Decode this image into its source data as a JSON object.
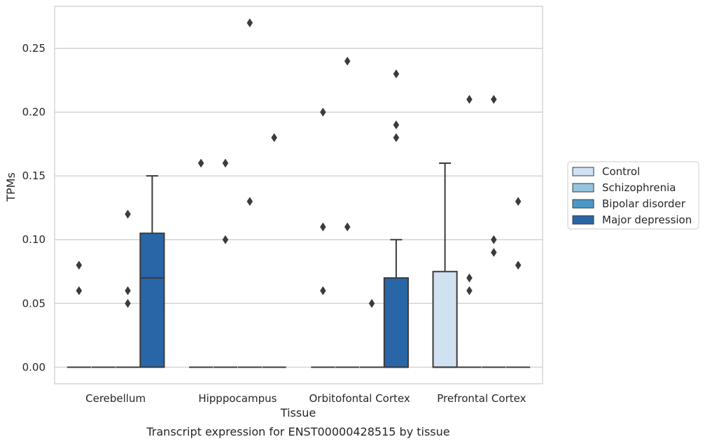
{
  "caption": "Transcript expression for ENST00000428515 by tissue",
  "chart_data": {
    "type": "box",
    "xlabel": "Tissue",
    "ylabel": "TPMs",
    "ylim": [
      -0.013,
      0.283
    ],
    "yticks": [
      "0.00",
      "0.05",
      "0.10",
      "0.15",
      "0.20",
      "0.25"
    ],
    "grid": "horizontal",
    "legend_position": "right",
    "categories": [
      "Cerebellum",
      "Hipppocampus",
      "Orbitofontal Cortex",
      "Prefrontal Cortex"
    ],
    "series": [
      {
        "name": "Control",
        "color": "#d0e1f2"
      },
      {
        "name": "Schizophrenia",
        "color": "#94c4df"
      },
      {
        "name": "Bipolar disorder",
        "color": "#4a98c9"
      },
      {
        "name": "Major depression",
        "color": "#2966a8"
      }
    ],
    "boxes": [
      {
        "category": "Cerebellum",
        "series": "Control",
        "q1": 0,
        "median": 0,
        "q3": 0,
        "whisker_low": 0,
        "whisker_high": 0,
        "outliers": [
          0.08,
          0.06
        ]
      },
      {
        "category": "Cerebellum",
        "series": "Schizophrenia",
        "q1": 0,
        "median": 0,
        "q3": 0,
        "whisker_low": 0,
        "whisker_high": 0,
        "outliers": []
      },
      {
        "category": "Cerebellum",
        "series": "Bipolar disorder",
        "q1": 0,
        "median": 0,
        "q3": 0,
        "whisker_low": 0,
        "whisker_high": 0,
        "outliers": [
          0.12,
          0.06,
          0.05
        ]
      },
      {
        "category": "Cerebellum",
        "series": "Major depression",
        "q1": 0,
        "median": 0.07,
        "q3": 0.105,
        "whisker_low": 0,
        "whisker_high": 0.15,
        "outliers": []
      },
      {
        "category": "Hipppocampus",
        "series": "Control",
        "q1": 0,
        "median": 0,
        "q3": 0,
        "whisker_low": 0,
        "whisker_high": 0,
        "outliers": [
          0.16
        ]
      },
      {
        "category": "Hipppocampus",
        "series": "Schizophrenia",
        "q1": 0,
        "median": 0,
        "q3": 0,
        "whisker_low": 0,
        "whisker_high": 0,
        "outliers": [
          0.16,
          0.1
        ]
      },
      {
        "category": "Hipppocampus",
        "series": "Bipolar disorder",
        "q1": 0,
        "median": 0,
        "q3": 0,
        "whisker_low": 0,
        "whisker_high": 0,
        "outliers": [
          0.27,
          0.13
        ]
      },
      {
        "category": "Hipppocampus",
        "series": "Major depression",
        "q1": 0,
        "median": 0,
        "q3": 0,
        "whisker_low": 0,
        "whisker_high": 0,
        "outliers": [
          0.18
        ]
      },
      {
        "category": "Orbitofontal Cortex",
        "series": "Control",
        "q1": 0,
        "median": 0,
        "q3": 0,
        "whisker_low": 0,
        "whisker_high": 0,
        "outliers": [
          0.2,
          0.11,
          0.06
        ]
      },
      {
        "category": "Orbitofontal Cortex",
        "series": "Schizophrenia",
        "q1": 0,
        "median": 0,
        "q3": 0,
        "whisker_low": 0,
        "whisker_high": 0,
        "outliers": [
          0.24,
          0.11
        ]
      },
      {
        "category": "Orbitofontal Cortex",
        "series": "Bipolar disorder",
        "q1": 0,
        "median": 0,
        "q3": 0,
        "whisker_low": 0,
        "whisker_high": 0,
        "outliers": [
          0.05
        ]
      },
      {
        "category": "Orbitofontal Cortex",
        "series": "Major depression",
        "q1": 0,
        "median": 0,
        "q3": 0.07,
        "whisker_low": 0,
        "whisker_high": 0.1,
        "outliers": [
          0.23,
          0.19,
          0.18
        ]
      },
      {
        "category": "Prefrontal Cortex",
        "series": "Control",
        "q1": 0,
        "median": 0,
        "q3": 0.075,
        "whisker_low": 0,
        "whisker_high": 0.16,
        "outliers": []
      },
      {
        "category": "Prefrontal Cortex",
        "series": "Schizophrenia",
        "q1": 0,
        "median": 0,
        "q3": 0,
        "whisker_low": 0,
        "whisker_high": 0,
        "outliers": [
          0.21,
          0.07,
          0.06
        ]
      },
      {
        "category": "Prefrontal Cortex",
        "series": "Bipolar disorder",
        "q1": 0,
        "median": 0,
        "q3": 0,
        "whisker_low": 0,
        "whisker_high": 0,
        "outliers": [
          0.21,
          0.1,
          0.09
        ]
      },
      {
        "category": "Prefrontal Cortex",
        "series": "Major depression",
        "q1": 0,
        "median": 0,
        "q3": 0,
        "whisker_low": 0,
        "whisker_high": 0,
        "outliers": [
          0.13,
          0.08
        ]
      }
    ]
  }
}
